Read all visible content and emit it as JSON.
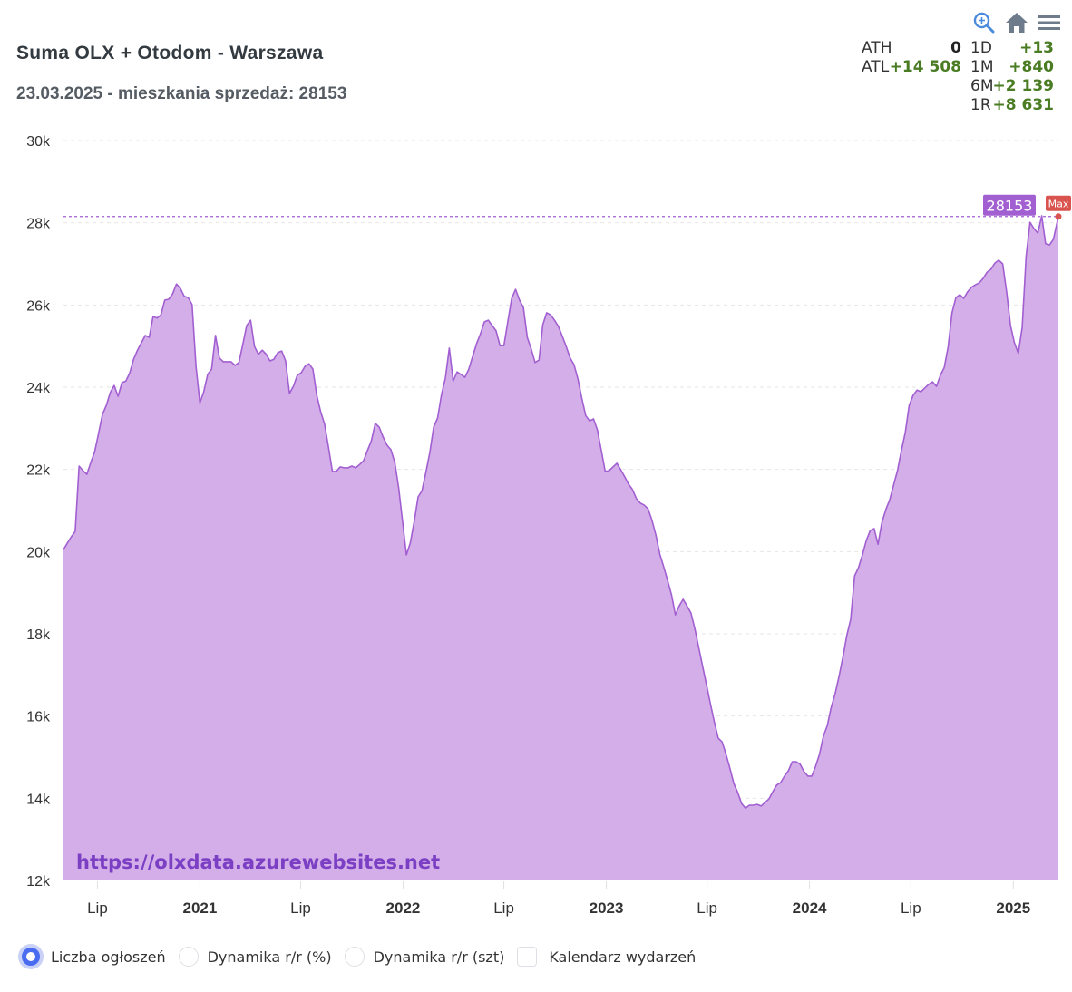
{
  "header": {
    "title": "Suma OLX + Otodom - Warszawa",
    "subtitle": "23.03.2025 - mieszkania sprzedaż: 28153"
  },
  "toolbar": {
    "icons": [
      "zoom-in-icon",
      "home-icon",
      "menu-icon"
    ]
  },
  "stats": {
    "left": [
      {
        "label": "ATH",
        "value": "0"
      },
      {
        "label": "ATL",
        "value": "+14 508"
      }
    ],
    "right": [
      {
        "label": "1D",
        "value": "+13"
      },
      {
        "label": "1M",
        "value": "+840"
      },
      {
        "label": "6M",
        "value": "+2 139"
      },
      {
        "label": "1R",
        "value": "+8 631"
      }
    ]
  },
  "watermark": "https://olxdata.azurewebsites.net",
  "legend": {
    "options": [
      {
        "label": "Liczba ogłoszeń",
        "type": "radio",
        "selected": true
      },
      {
        "label": "Dynamika r/r (%)",
        "type": "radio",
        "selected": false
      },
      {
        "label": "Dynamika r/r (szt)",
        "type": "radio",
        "selected": false
      },
      {
        "label": "Kalendarz wydarzeń",
        "type": "checkbox",
        "selected": false
      }
    ]
  },
  "colors": {
    "area_fill": "#d4aee8",
    "line": "#a15fd1",
    "label_bg": "#a15fd1",
    "max_badge": "#d9534f",
    "watermark": "#7b3fc4",
    "grid": "#e6e6e6"
  },
  "chart_data": {
    "type": "area",
    "title": "Suma OLX + Otodom - Warszawa",
    "subtitle": "23.03.2025 - mieszkania sprzedaż: 28153",
    "xlabel": "",
    "ylabel": "",
    "ylim": [
      12000,
      30000
    ],
    "yticks": [
      12000,
      14000,
      16000,
      18000,
      20000,
      22000,
      24000,
      26000,
      28000,
      30000
    ],
    "ytick_labels": [
      "12k",
      "14k",
      "16k",
      "18k",
      "20k",
      "22k",
      "24k",
      "26k",
      "28k",
      "30k"
    ],
    "xlim": [
      "2020-05-01",
      "2025-03-23"
    ],
    "xticks": [
      "2020-07-01",
      "2021-01-01",
      "2021-07-01",
      "2022-01-01",
      "2022-07-01",
      "2023-01-01",
      "2023-07-01",
      "2024-01-01",
      "2024-07-01",
      "2025-01-01"
    ],
    "xtick_labels": [
      "Lip",
      "2021",
      "Lip",
      "2022",
      "Lip",
      "2023",
      "Lip",
      "2024",
      "Lip",
      "2025"
    ],
    "xtick_bold": [
      false,
      true,
      false,
      true,
      false,
      true,
      false,
      true,
      false,
      true
    ],
    "grid": true,
    "series": [
      {
        "name": "Liczba ogłoszeń",
        "start_date": "2020-05-01",
        "step_days": 7,
        "end_date": "2025-03-23",
        "values": [
          20050,
          20210,
          20360,
          20490,
          22080,
          21970,
          21880,
          22170,
          22430,
          22880,
          23340,
          23560,
          23870,
          24040,
          23780,
          24110,
          24150,
          24350,
          24680,
          24900,
          25080,
          25260,
          25210,
          25720,
          25680,
          25760,
          26120,
          26140,
          26270,
          26510,
          26400,
          26210,
          26180,
          26010,
          24510,
          23620,
          23890,
          24310,
          24440,
          25260,
          24710,
          24620,
          24620,
          24620,
          24530,
          24600,
          25040,
          25500,
          25630,
          24990,
          24800,
          24900,
          24800,
          24640,
          24680,
          24840,
          24880,
          24640,
          23850,
          24020,
          24290,
          24350,
          24510,
          24570,
          24440,
          23800,
          23400,
          23100,
          22540,
          21950,
          21950,
          22060,
          22040,
          22040,
          22080,
          22040,
          22120,
          22210,
          22460,
          22700,
          23120,
          23030,
          22790,
          22590,
          22480,
          22170,
          21550,
          20730,
          19920,
          20210,
          20730,
          21330,
          21480,
          21930,
          22410,
          23030,
          23250,
          23820,
          24220,
          24950,
          24150,
          24370,
          24310,
          24240,
          24440,
          24750,
          25060,
          25300,
          25590,
          25630,
          25500,
          25370,
          25010,
          25010,
          25590,
          26160,
          26380,
          26120,
          25940,
          25210,
          24930,
          24600,
          24660,
          25520,
          25810,
          25760,
          25630,
          25480,
          25240,
          24990,
          24710,
          24550,
          24200,
          23730,
          23310,
          23180,
          23230,
          22960,
          22460,
          21950,
          21970,
          22060,
          22150,
          21990,
          21820,
          21640,
          21510,
          21290,
          21180,
          21130,
          21040,
          20760,
          20400,
          19940,
          19630,
          19300,
          18950,
          18460,
          18680,
          18840,
          18680,
          18510,
          18130,
          17670,
          17210,
          16760,
          16300,
          15860,
          15460,
          15370,
          15070,
          14730,
          14360,
          14140,
          13870,
          13760,
          13830,
          13830,
          13850,
          13810,
          13900,
          13980,
          14160,
          14320,
          14380,
          14540,
          14670,
          14890,
          14890,
          14830,
          14650,
          14540,
          14540,
          14780,
          15070,
          15510,
          15770,
          16210,
          16540,
          16960,
          17430,
          17960,
          18350,
          19410,
          19610,
          19920,
          20270,
          20510,
          20560,
          20180,
          20710,
          21020,
          21260,
          21620,
          21970,
          22460,
          22900,
          23560,
          23800,
          23930,
          23890,
          23980,
          24070,
          24130,
          24020,
          24290,
          24480,
          24990,
          25810,
          26180,
          26250,
          26160,
          26320,
          26430,
          26490,
          26540,
          26650,
          26800,
          26870,
          27020,
          27090,
          27000,
          26320,
          25500,
          25080,
          24820,
          25460,
          27180,
          28010,
          27860,
          27750,
          28170,
          27490,
          27460,
          27600,
          28153
        ]
      }
    ],
    "annotations": [
      {
        "type": "hline",
        "value": 28153,
        "label": "28153",
        "style": "dashed"
      },
      {
        "type": "marker",
        "date": "2025-03-23",
        "value": 28153,
        "label": "Max"
      }
    ]
  }
}
